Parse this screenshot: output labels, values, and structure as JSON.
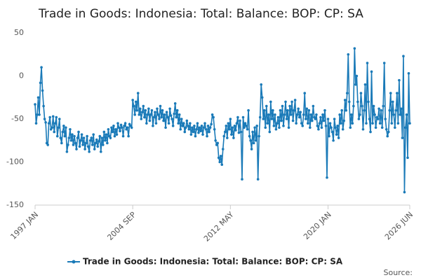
{
  "chart_data": {
    "type": "line",
    "title": "Trade in Goods: Indonesia: Total: Balance: BOP: CP: SA",
    "source": "Source:",
    "categories": [
      "1997 JAN",
      null,
      null,
      null,
      null,
      null,
      null,
      null,
      null,
      null,
      null,
      null,
      null,
      null,
      null,
      null,
      null,
      null,
      null,
      null,
      null,
      null,
      null,
      null,
      null,
      null,
      null,
      null,
      null,
      null,
      null,
      null,
      null,
      null,
      null,
      null,
      null,
      null,
      null,
      null,
      null,
      null,
      null,
      null,
      null,
      null,
      null,
      null,
      null,
      null,
      null,
      null,
      null,
      null,
      null,
      null,
      null,
      null,
      null,
      null,
      null,
      null,
      null,
      null,
      null,
      null,
      null,
      null,
      null,
      null,
      null,
      null,
      null,
      null,
      null,
      null,
      null,
      null,
      null,
      null,
      null,
      null,
      null,
      null,
      null,
      null,
      null,
      null,
      null,
      null,
      null,
      null,
      "2004 SEP",
      null,
      null,
      null,
      null,
      null,
      null,
      null,
      null,
      null,
      null,
      null,
      null,
      null,
      null,
      null,
      null,
      null,
      null,
      null,
      null,
      null,
      null,
      null,
      null,
      null,
      null,
      null,
      null,
      null,
      null,
      null,
      null,
      null,
      null,
      null,
      null,
      null,
      null,
      null,
      null,
      null,
      null,
      null,
      null,
      null,
      null,
      null,
      null,
      null,
      null,
      null,
      null,
      null,
      null,
      null,
      null,
      null,
      null,
      null,
      null,
      null,
      null,
      null,
      null,
      null,
      null,
      null,
      null,
      null,
      null,
      null,
      null,
      null,
      null,
      null,
      null,
      null,
      null,
      null,
      null,
      null,
      null,
      null,
      null,
      null,
      null,
      null,
      null,
      null,
      null,
      null,
      "2012 MAY",
      null,
      null,
      null,
      null,
      null,
      null,
      null,
      null,
      null,
      null,
      null,
      null,
      null,
      null,
      null,
      null,
      null,
      null,
      null,
      null,
      null,
      null,
      null,
      null,
      null,
      null,
      null,
      null,
      null,
      null,
      null,
      null,
      null,
      null,
      null,
      null,
      null,
      null,
      null,
      null,
      null,
      null,
      null,
      null,
      null,
      null,
      null,
      null,
      null,
      null,
      null,
      null,
      null,
      null,
      null,
      null,
      null,
      null,
      null,
      null,
      null,
      null,
      null,
      null,
      null,
      null,
      null,
      null,
      null,
      null,
      null,
      null,
      null,
      null,
      null,
      null,
      null,
      null,
      null,
      null,
      null,
      null,
      null,
      null,
      null,
      null,
      null,
      null,
      null,
      null,
      null,
      "2020 JAN",
      null,
      null,
      null,
      null,
      null,
      null,
      null,
      null,
      null,
      null,
      null,
      null,
      null,
      null,
      null,
      null,
      null,
      null,
      null,
      null,
      null,
      null,
      null,
      null,
      null,
      null,
      null,
      null,
      null,
      null,
      null,
      null,
      null,
      null,
      null,
      null,
      null,
      null,
      null,
      null,
      null,
      null,
      null,
      null,
      null,
      null,
      null,
      null,
      null,
      null,
      null,
      null,
      null,
      null,
      null,
      null,
      null,
      null,
      null,
      null,
      null,
      null,
      null,
      null,
      null,
      null,
      null,
      null,
      null,
      null,
      null,
      null,
      null,
      null,
      null,
      null,
      "2026 JUN"
    ],
    "series": [
      {
        "name": "Trade in Goods: Indonesia: Total: Balance: BOP: CP: SA",
        "color": "#1a7ab8",
        "values": [
          -33,
          -55,
          -45,
          -25,
          -45,
          -8,
          10,
          -17,
          -35,
          -50,
          -54,
          -78,
          -80,
          -55,
          -48,
          -62,
          -60,
          -47,
          -65,
          -55,
          -48,
          -70,
          -60,
          -50,
          -72,
          -78,
          -65,
          -58,
          -70,
          -60,
          -88,
          -80,
          -72,
          -62,
          -75,
          -68,
          -80,
          -70,
          -78,
          -85,
          -72,
          -65,
          -82,
          -75,
          -68,
          -80,
          -72,
          -85,
          -78,
          -70,
          -82,
          -88,
          -75,
          -72,
          -80,
          -68,
          -85,
          -78,
          -74,
          -82,
          -76,
          -70,
          -88,
          -72,
          -80,
          -65,
          -75,
          -68,
          -78,
          -62,
          -70,
          -72,
          -60,
          -65,
          -58,
          -70,
          -62,
          -68,
          -55,
          -60,
          -64,
          -57,
          -60,
          -70,
          -58,
          -55,
          -62,
          -60,
          -70,
          -56,
          -58,
          -60,
          -28,
          -35,
          -45,
          -30,
          -40,
          -20,
          -45,
          -38,
          -50,
          -42,
          -35,
          -48,
          -40,
          -55,
          -45,
          -38,
          -52,
          -45,
          -40,
          -58,
          -48,
          -42,
          -55,
          -38,
          -45,
          -50,
          -35,
          -48,
          -40,
          -52,
          -45,
          -60,
          -42,
          -48,
          -55,
          -38,
          -46,
          -50,
          -58,
          -44,
          -32,
          -48,
          -40,
          -55,
          -45,
          -62,
          -50,
          -58,
          -55,
          -65,
          -60,
          -52,
          -58,
          -62,
          -55,
          -68,
          -60,
          -65,
          -58,
          -70,
          -62,
          -55,
          -66,
          -60,
          -64,
          -58,
          -68,
          -60,
          -55,
          -62,
          -70,
          -58,
          -65,
          -60,
          -56,
          -45,
          -48,
          -62,
          -75,
          -80,
          -78,
          -95,
          -100,
          -93,
          -103,
          -85,
          -70,
          -65,
          -58,
          -72,
          -55,
          -62,
          -50,
          -68,
          -60,
          -72,
          -58,
          -63,
          -55,
          -48,
          -66,
          -52,
          -65,
          -120,
          -48,
          -60,
          -55,
          -58,
          -62,
          -40,
          -70,
          -75,
          -85,
          -65,
          -78,
          -60,
          -75,
          -58,
          -120,
          -70,
          -48,
          -10,
          -25,
          -50,
          -40,
          -60,
          -35,
          -55,
          -45,
          -65,
          -30,
          -50,
          -40,
          -58,
          -45,
          -62,
          -55,
          -48,
          -60,
          -40,
          -52,
          -35,
          -58,
          -45,
          -30,
          -50,
          -40,
          -60,
          -35,
          -45,
          -30,
          -52,
          -40,
          -28,
          -55,
          -45,
          -38,
          -48,
          -42,
          -55,
          -58,
          -45,
          -20,
          -50,
          -38,
          -55,
          -40,
          -60,
          -45,
          -52,
          -35,
          -48,
          -50,
          -45,
          -58,
          -62,
          -55,
          -48,
          -60,
          -45,
          -52,
          -40,
          -58,
          -118,
          -50,
          -70,
          -55,
          -60,
          -65,
          -75,
          -50,
          -60,
          -68,
          -58,
          -72,
          -45,
          -55,
          -40,
          -62,
          -52,
          -28,
          -40,
          -20,
          25,
          -30,
          -60,
          -45,
          -55,
          -35,
          32,
          -10,
          0,
          -30,
          -50,
          -45,
          -20,
          -35,
          -62,
          -40,
          -10,
          -55,
          15,
          -30,
          -50,
          -65,
          5,
          -55,
          -35,
          -45,
          -60,
          -48,
          -50,
          -38,
          -55,
          -40,
          -60,
          -35,
          15,
          -50,
          -62,
          -70,
          -65,
          -40,
          -20,
          -55,
          -30,
          -45,
          -60,
          -40,
          -20,
          -55,
          -5,
          -45,
          -38,
          -72,
          23,
          -135,
          -60,
          -45,
          -95,
          3,
          -55
        ]
      }
    ],
    "ylim": [
      -150,
      50
    ],
    "yticks": [
      50,
      0,
      -50,
      -100,
      -150
    ],
    "grid": false
  }
}
